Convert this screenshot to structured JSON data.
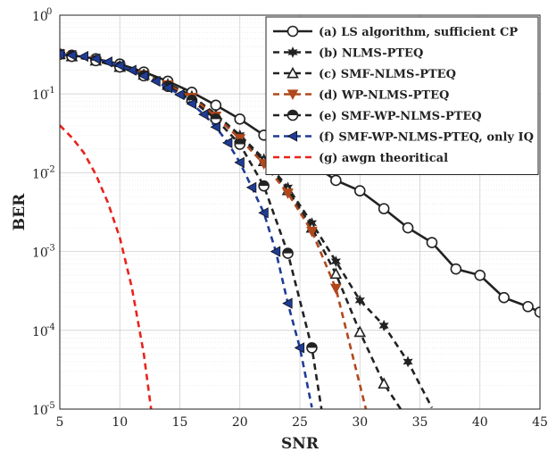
{
  "chart_data": {
    "type": "line",
    "title": "",
    "xlabel": "SNR",
    "ylabel": "BER",
    "xlim": [
      5,
      45
    ],
    "ylim": [
      1e-05,
      1
    ],
    "y_scale": "log",
    "grid": true,
    "legend_position": "top-right",
    "x_ticks": [
      5,
      10,
      15,
      20,
      25,
      30,
      35,
      40,
      45
    ],
    "x_tick_labels": [
      "5",
      "10",
      "15",
      "20",
      "25",
      "30",
      "35",
      "40",
      "45"
    ],
    "y_ticks": [
      {
        "value": 1,
        "base": "10",
        "exp": "0"
      },
      {
        "value": 0.1,
        "base": "10",
        "exp": "-1"
      },
      {
        "value": 0.01,
        "base": "10",
        "exp": "-2"
      },
      {
        "value": 0.001,
        "base": "10",
        "exp": "-3"
      },
      {
        "value": 0.0001,
        "base": "10",
        "exp": "-4"
      },
      {
        "value": 1e-05,
        "base": "10",
        "exp": "-5"
      }
    ],
    "series": [
      {
        "name": "(a) LS algorithm, sufficient CP",
        "color": "#222222",
        "line": "solid",
        "marker": "circle-open",
        "x": [
          5,
          6,
          8,
          10,
          12,
          14,
          16,
          18,
          20,
          22,
          24,
          26,
          28,
          30,
          32,
          34,
          36,
          38,
          40,
          42,
          44,
          45
        ],
        "y": [
          0.32,
          0.31,
          0.28,
          0.24,
          0.19,
          0.145,
          0.105,
          0.072,
          0.048,
          0.03,
          0.02,
          0.013,
          0.008,
          0.0059,
          0.0035,
          0.002,
          0.0013,
          0.0006,
          0.0005,
          0.00026,
          0.0002,
          0.00017
        ]
      },
      {
        "name": "(b) NLMS-PTEQ",
        "color": "#222222",
        "line": "dashed",
        "marker": "star",
        "x": [
          5,
          6,
          8,
          10,
          12,
          14,
          16,
          18,
          20,
          22,
          24,
          26,
          28,
          30,
          32,
          34,
          36
        ],
        "y": [
          0.32,
          0.3,
          0.27,
          0.23,
          0.18,
          0.135,
          0.095,
          0.055,
          0.03,
          0.015,
          0.0065,
          0.0023,
          0.00075,
          0.00024,
          0.000115,
          4e-05,
          1.04e-05
        ]
      },
      {
        "name": "(c) SMF-NLMS-PTEQ",
        "color": "#222222",
        "line": "dashed",
        "marker": "triangle-up-open",
        "x": [
          5,
          6,
          8,
          10,
          12,
          14,
          16,
          18,
          20,
          22,
          24,
          26,
          28,
          30,
          32,
          33.4
        ],
        "y": [
          0.32,
          0.3,
          0.265,
          0.22,
          0.175,
          0.13,
          0.09,
          0.052,
          0.028,
          0.014,
          0.006,
          0.002,
          0.00052,
          9.5e-05,
          2.1e-05,
          1e-05
        ]
      },
      {
        "name": "(d) WP-NLMS-PTEQ",
        "color": "#b0481c",
        "line": "dashed",
        "marker": "triangle-down-filled",
        "x": [
          5,
          6,
          8,
          10,
          12,
          14,
          16,
          18,
          20,
          22,
          24,
          26,
          28,
          30.5
        ],
        "y": [
          0.32,
          0.3,
          0.265,
          0.22,
          0.175,
          0.13,
          0.09,
          0.052,
          0.027,
          0.013,
          0.0055,
          0.0018,
          0.00034,
          1e-05
        ]
      },
      {
        "name": "(e) SMF-WP-NLMS-PTEQ",
        "color": "#222222",
        "line": "dashed",
        "marker": "circle-half",
        "x": [
          5,
          6,
          8,
          10,
          12,
          14,
          16,
          18,
          20,
          22,
          24,
          26,
          26.8
        ],
        "y": [
          0.32,
          0.3,
          0.265,
          0.22,
          0.17,
          0.125,
          0.083,
          0.048,
          0.023,
          0.0068,
          0.00095,
          6e-05,
          1e-05
        ]
      },
      {
        "name": "(f) SMF-WP-NLMS-PTEQ, only IQ",
        "color": "#1f3c96",
        "line": "dashed",
        "marker": "triangle-left-filled",
        "x": [
          5,
          6,
          7,
          8,
          9,
          10,
          11,
          12,
          13,
          14,
          15,
          16,
          17,
          18,
          19,
          20,
          21,
          22,
          23,
          24,
          25,
          26
        ],
        "y": [
          0.32,
          0.31,
          0.3,
          0.28,
          0.255,
          0.23,
          0.2,
          0.17,
          0.145,
          0.12,
          0.098,
          0.075,
          0.055,
          0.038,
          0.024,
          0.0135,
          0.0065,
          0.0031,
          0.001,
          0.00022,
          6e-05,
          1.05e-05
        ]
      },
      {
        "name": "(g) awgn theoritical",
        "color": "#e8231c",
        "line": "dashed",
        "marker": "none",
        "x": [
          5,
          6,
          7,
          8,
          9,
          10,
          11,
          12,
          13,
          13.4
        ],
        "y": [
          0.04,
          0.028,
          0.018,
          0.0095,
          0.0042,
          0.0015,
          0.00035,
          5e-05,
          3.5e-06,
          1e-05
        ]
      }
    ]
  }
}
